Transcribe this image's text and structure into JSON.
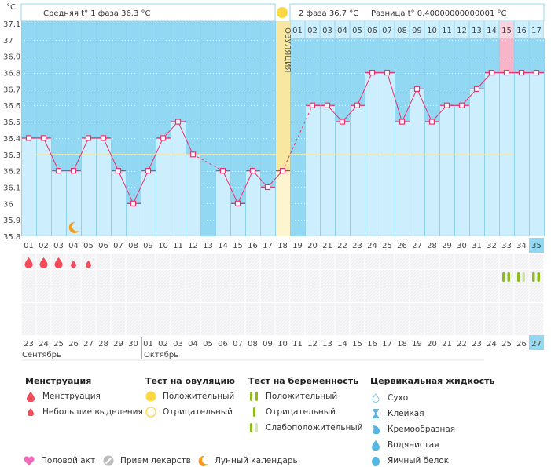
{
  "header": {
    "unit": "°C",
    "phase1_text": "Средняя t° 1 фаза  36.3 °C",
    "phase2_text": "2 фаза  36.7 °C",
    "diff_text": "Разница t° 0.40000000000001 °C",
    "ovulation_label": "ОВУЛЯЦИЯ"
  },
  "chart_data": {
    "type": "line",
    "title": "",
    "ylabel": "°C",
    "ylim": [
      35.8,
      37.1
    ],
    "yticks": [
      "37.1",
      "37",
      "36.9",
      "36.8",
      "36.7",
      "36.6",
      "36.5",
      "36.4",
      "36.3",
      "36.2",
      "36.1",
      "36",
      "35.9",
      "35.8"
    ],
    "cycle_days": [
      "01",
      "02",
      "03",
      "04",
      "05",
      "06",
      "07",
      "08",
      "09",
      "10",
      "11",
      "12",
      "13",
      "14",
      "15",
      "16",
      "17",
      "18",
      "19",
      "20",
      "21",
      "22",
      "23",
      "24",
      "25",
      "26",
      "27",
      "28",
      "29",
      "30",
      "31",
      "32",
      "33",
      "34",
      "35"
    ],
    "temperatures": [
      36.4,
      36.4,
      36.2,
      36.2,
      36.4,
      36.4,
      36.2,
      36.0,
      36.2,
      36.4,
      36.5,
      36.3,
      null,
      36.2,
      36.0,
      36.2,
      36.1,
      36.2,
      null,
      36.6,
      36.6,
      36.5,
      36.6,
      36.8,
      36.8,
      36.5,
      36.7,
      36.5,
      36.6,
      36.6,
      36.7,
      36.8,
      36.8,
      36.8,
      36.8
    ],
    "cover_line": 36.3,
    "ovulation_day": 18,
    "phase2_days": [
      "01",
      "02",
      "03",
      "04",
      "05",
      "06",
      "07",
      "08",
      "09",
      "10",
      "11",
      "12",
      "13",
      "14",
      "15",
      "16",
      "17"
    ],
    "highlight_phase2_day": "15",
    "calendar_dates": [
      "23",
      "24",
      "25",
      "26",
      "27",
      "28",
      "29",
      "30",
      "01",
      "02",
      "03",
      "04",
      "05",
      "06",
      "07",
      "08",
      "09",
      "10",
      "11",
      "12",
      "13",
      "14",
      "15",
      "16",
      "17",
      "18",
      "19",
      "20",
      "21",
      "22",
      "23",
      "24",
      "25",
      "26",
      "27"
    ],
    "weekend_indices": [
      4,
      5,
      11,
      12,
      18,
      19,
      25,
      26,
      32,
      33
    ],
    "months": [
      "Сентябрь",
      "Октябрь"
    ],
    "current_day_index": 34,
    "menstruation": [
      "heavy",
      "heavy",
      "heavy",
      "light",
      "light"
    ],
    "pregnancy_tests": {
      "32": "positive",
      "33": "weak",
      "34": "positive"
    },
    "moon_day_index": 3
  },
  "colors": {
    "sky": "#93d8f2",
    "bar": "#cdeefc",
    "line": "#e8336d",
    "ovulation": "#f7e7a0",
    "pink": "#f8b4c8",
    "weekend": "#e8336d",
    "pregnancy": "#8cbb1a",
    "pregnancy_weak": "#cfe0a0"
  },
  "legend": {
    "menstruation": {
      "title": "Менструация",
      "items": [
        "Менструация",
        "Небольшие выделения"
      ]
    },
    "ovulation_test": {
      "title": "Тест на овуляцию",
      "items": [
        "Положительный",
        "Отрицательный"
      ]
    },
    "pregnancy_test": {
      "title": "Тест на беременность",
      "items": [
        "Положительный",
        "Отрицательный",
        "Слабоположительный"
      ]
    },
    "cervical": {
      "title": "Цервикальная жидкость",
      "items": [
        "Сухо",
        "Клейкая",
        "Кремообразная",
        "Водянистая",
        "Яичный белок"
      ]
    },
    "bottom": [
      "Половой акт",
      "Прием лекарств",
      "Лунный календарь"
    ]
  }
}
